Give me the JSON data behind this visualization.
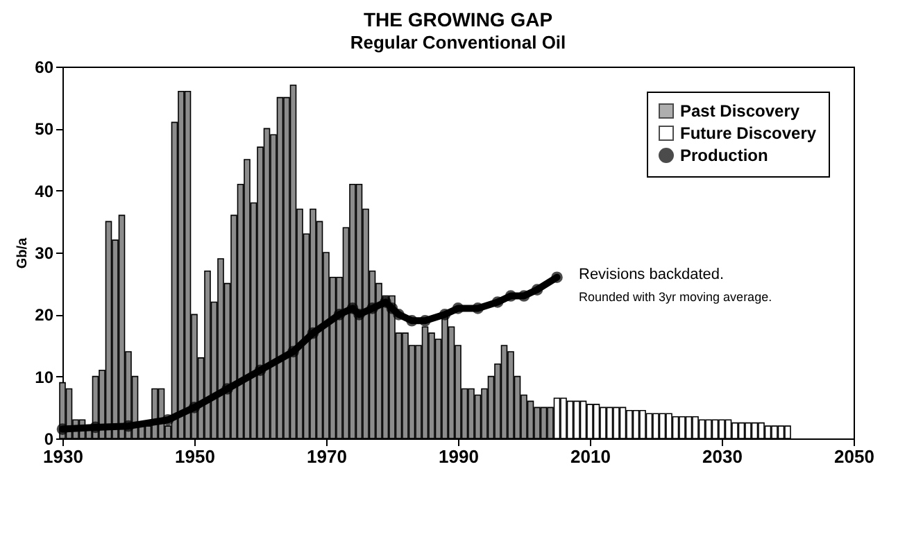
{
  "chart_data": {
    "type": "bar",
    "title": "THE GROWING GAP",
    "subtitle": "Regular Conventional Oil",
    "ylabel": "Gb/a",
    "xlim": [
      1930,
      2050
    ],
    "xticks": [
      1930,
      1950,
      1970,
      1990,
      2010,
      2030,
      2050
    ],
    "ylim": [
      0,
      60
    ],
    "yticks": [
      0,
      10,
      20,
      30,
      40,
      50,
      60
    ],
    "grid": false,
    "legend": "top right",
    "annotations": [
      "Revisions backdated.",
      "Rounded with 3yr moving average."
    ],
    "series": [
      {
        "name": "Past Discovery",
        "color": "#8c8c8c",
        "x": [
          1930,
          1931,
          1932,
          1933,
          1934,
          1935,
          1936,
          1937,
          1938,
          1939,
          1940,
          1941,
          1942,
          1943,
          1944,
          1945,
          1946,
          1947,
          1948,
          1949,
          1950,
          1951,
          1952,
          1953,
          1954,
          1955,
          1956,
          1957,
          1958,
          1959,
          1960,
          1961,
          1962,
          1963,
          1964,
          1965,
          1966,
          1967,
          1968,
          1969,
          1970,
          1971,
          1972,
          1973,
          1974,
          1975,
          1976,
          1977,
          1978,
          1979,
          1980,
          1981,
          1982,
          1983,
          1984,
          1985,
          1986,
          1987,
          1988,
          1989,
          1990,
          1991,
          1992,
          1993,
          1994,
          1995,
          1996,
          1997,
          1998,
          1999,
          2000,
          2001,
          2002,
          2003,
          2004
        ],
        "values": [
          9,
          8,
          3,
          3,
          2,
          10,
          11,
          35,
          32,
          36,
          14,
          10,
          2,
          2,
          8,
          8,
          2,
          51,
          56,
          56,
          20,
          13,
          27,
          22,
          29,
          25,
          36,
          41,
          45,
          38,
          47,
          50,
          49,
          55,
          55,
          57,
          37,
          33,
          37,
          35,
          30,
          26,
          26,
          34,
          41,
          41,
          37,
          27,
          25,
          23,
          23,
          17,
          17,
          15,
          15,
          18,
          17,
          16,
          20,
          18,
          15,
          8,
          8,
          7,
          8,
          10,
          12,
          15,
          14,
          10,
          7,
          6,
          5,
          5,
          5
        ]
      },
      {
        "name": "Future Discovery",
        "color": "#ffffff",
        "x": [
          2005,
          2006,
          2007,
          2008,
          2009,
          2010,
          2011,
          2012,
          2013,
          2014,
          2015,
          2016,
          2017,
          2018,
          2019,
          2020,
          2021,
          2022,
          2023,
          2024,
          2025,
          2026,
          2027,
          2028,
          2029,
          2030,
          2031,
          2032,
          2033,
          2034,
          2035,
          2036,
          2037,
          2038,
          2039,
          2040
        ],
        "values": [
          6.5,
          6.5,
          6,
          6,
          6,
          5.5,
          5.5,
          5,
          5,
          5,
          5,
          4.5,
          4.5,
          4.5,
          4,
          4,
          4,
          4,
          3.5,
          3.5,
          3.5,
          3.5,
          3,
          3,
          3,
          3,
          3,
          2.5,
          2.5,
          2.5,
          2.5,
          2.5,
          2,
          2,
          2,
          2
        ]
      },
      {
        "name": "Production",
        "color": "#000000",
        "type": "line",
        "marker": "circle",
        "line_style": "solid",
        "x": [
          1930,
          1935,
          1940,
          1946,
          1950,
          1955,
          1960,
          1965,
          1968,
          1972,
          1974,
          1975,
          1977,
          1979,
          1980,
          1981,
          1983,
          1985,
          1988,
          1990,
          1993,
          1996,
          1998,
          2000,
          2002,
          2005
        ],
        "values": [
          1.5,
          1.8,
          2,
          3,
          5,
          8,
          11,
          14,
          17,
          20,
          21,
          20,
          21,
          22,
          21,
          20,
          19,
          19,
          20,
          21,
          21,
          22,
          23,
          23,
          24,
          26
        ]
      }
    ]
  }
}
